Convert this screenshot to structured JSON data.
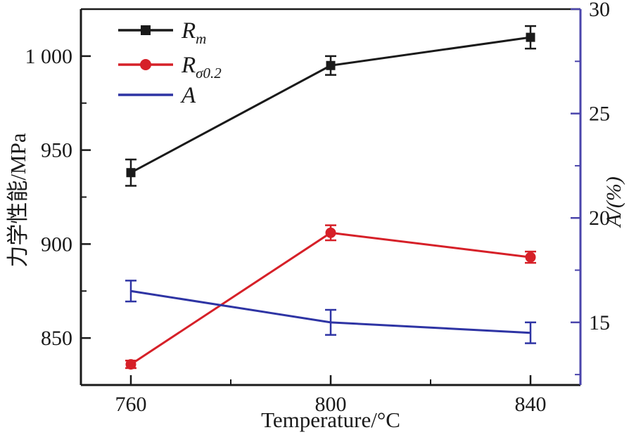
{
  "figure": {
    "background": "#ffffff",
    "frame_color": "#1a1a1a"
  },
  "chart_data": {
    "type": "line",
    "title": "",
    "xlabel": "Temperature/°C",
    "x": [
      760,
      800,
      840
    ],
    "x_tick_labels": [
      "760",
      "800",
      "840"
    ],
    "xlim": [
      750,
      850
    ],
    "x_minor_step": 20,
    "left_axis": {
      "label": "力学性能/MPa",
      "lim": [
        825,
        1025
      ],
      "major_ticks": [
        850,
        900,
        950,
        1000
      ],
      "tick_labels": [
        "850",
        "900",
        "950",
        "1 000"
      ],
      "minor_step": 25,
      "color": "#1a1a1a"
    },
    "right_axis": {
      "label": "A/(%)",
      "lim": [
        12,
        30
      ],
      "major_ticks": [
        15,
        20,
        25,
        30
      ],
      "tick_labels": [
        "15",
        "20",
        "25",
        "30"
      ],
      "minor_step": 2.5,
      "color": "#4a44ab",
      "tick_label_color": "#1a1a1a"
    },
    "grid": false,
    "legend_position": "top-left-inside",
    "legend_entries": [
      "Rm",
      "Rσ0.2",
      "A"
    ],
    "series": [
      {
        "id": "rm",
        "label": "R",
        "label_sub": "m",
        "axis": "left",
        "color": "#1a1a1a",
        "marker": "square",
        "values": [
          938,
          995,
          1010
        ],
        "errors": [
          7,
          5,
          6
        ]
      },
      {
        "id": "rsigma02",
        "label": "R",
        "label_sub": "σ0.2",
        "axis": "left",
        "color": "#d62028",
        "marker": "circle",
        "values": [
          836,
          906,
          893
        ],
        "errors": [
          2,
          4,
          3
        ]
      },
      {
        "id": "a",
        "label": "A",
        "label_sub": "",
        "axis": "right",
        "color": "#2e34a4",
        "marker": "none",
        "values": [
          16.5,
          15.0,
          14.5
        ],
        "errors": [
          0.5,
          0.6,
          0.5
        ]
      }
    ]
  }
}
